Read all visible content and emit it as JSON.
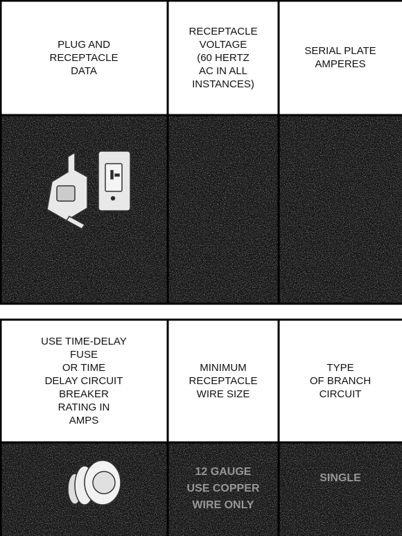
{
  "table1": {
    "headers": [
      "PLUG AND\nRECEPTACLE\nDATA",
      "RECEPTACLE\nVOLTAGE\n(60 HERTZ\nAC IN ALL\nINSTANCES)",
      "SERIAL PLATE\nAMPERES"
    ]
  },
  "table2": {
    "headers": [
      "USE TIME-DELAY\nFUSE\nOR TIME\nDELAY CIRCUIT\nBREAKER\nRATING IN\nAMPS",
      "MINIMUM\nRECEPTACLE\nWIRE SIZE",
      "TYPE\nOF BRANCH\nCIRCUIT"
    ],
    "cells": [
      "12 GAUGE\nUSE COPPER\nWIRE ONLY",
      "SINGLE"
    ]
  }
}
